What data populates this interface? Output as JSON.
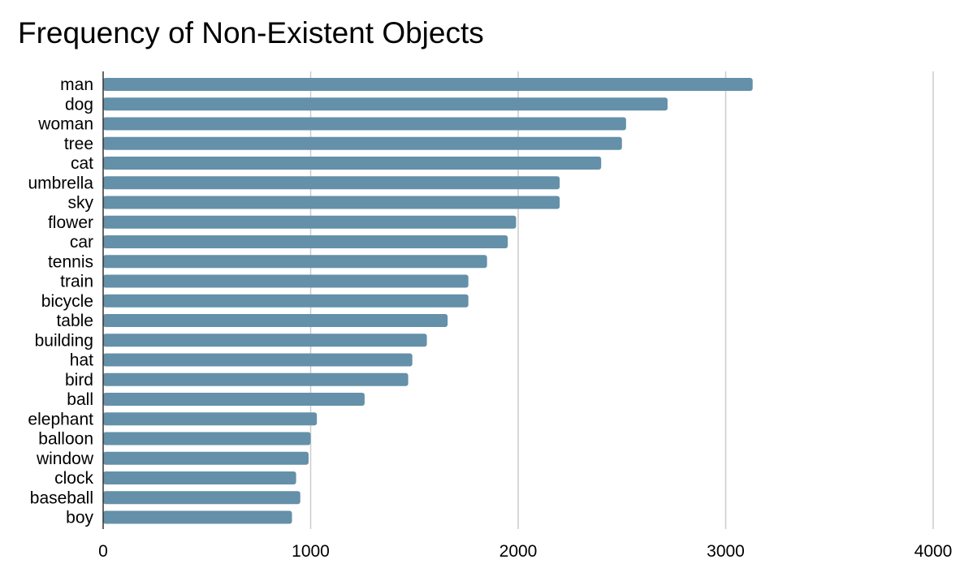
{
  "chart_data": {
    "type": "bar",
    "orientation": "horizontal",
    "title": "Frequency of Non-Existent Objects",
    "xlabel": "",
    "ylabel": "",
    "xlim": [
      0,
      4000
    ],
    "x_ticks": [
      "0",
      "1000",
      "2000",
      "3000",
      "4000"
    ],
    "grid": "vertical",
    "legend": "none",
    "bar_color": "#6490a9",
    "categories": [
      "man",
      "dog",
      "woman",
      "tree",
      "cat",
      "umbrella",
      "sky",
      "flower",
      "car",
      "tennis",
      "train",
      "bicycle",
      "table",
      "building",
      "hat",
      "bird",
      "ball",
      "elephant",
      "balloon",
      "window",
      "clock",
      "baseball",
      "boy"
    ],
    "values": [
      3130,
      2720,
      2520,
      2500,
      2400,
      2200,
      2200,
      1990,
      1950,
      1850,
      1760,
      1760,
      1660,
      1560,
      1490,
      1470,
      1260,
      1030,
      1000,
      990,
      930,
      950,
      910
    ]
  }
}
